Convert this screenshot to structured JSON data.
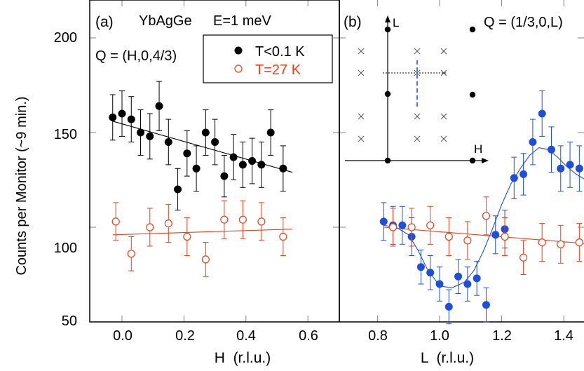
{
  "ylabel": "Counts per Monitor (~9 min.)",
  "colors": {
    "black": "#000000",
    "red": "#e8401c",
    "blue": "#1f4fd8",
    "tickgray": "#808080"
  },
  "chart_data": [
    {
      "panel": "(a)",
      "type": "scatter",
      "sample": "YbAgGe",
      "energy": "E=1 meV",
      "q_label": "Q = (H,0,4/3)",
      "xlabel": "H  (r.l.u.)",
      "ylabel": "Counts per Monitor (~9 min.)",
      "xlim": [
        -0.1,
        0.68
      ],
      "ylim": [
        50,
        220
      ],
      "x_ticks": [
        "0.0",
        "0.2",
        "0.4",
        "0.6"
      ],
      "y_ticks": [
        "50",
        "100",
        "150",
        "200"
      ],
      "legend_position": "top-right",
      "series": [
        {
          "name": "T<0.1 K",
          "marker": "filled-circle",
          "color": "#000000",
          "x": [
            -0.03,
            0.0,
            0.03,
            0.06,
            0.09,
            0.12,
            0.15,
            0.18,
            0.21,
            0.24,
            0.27,
            0.3,
            0.33,
            0.36,
            0.39,
            0.42,
            0.45,
            0.48,
            0.52
          ],
          "y": [
            158,
            160,
            157,
            150,
            148,
            164,
            145,
            120,
            139,
            131,
            150,
            145,
            127,
            137,
            133,
            135,
            133,
            150,
            131
          ],
          "err": [
            12,
            12,
            12,
            12,
            12,
            13,
            12,
            11,
            12,
            12,
            12,
            12,
            11,
            12,
            12,
            12,
            12,
            12,
            12
          ],
          "fit": {
            "x": [
              -0.03,
              0.55
            ],
            "y": [
              156,
              129
            ]
          }
        },
        {
          "name": "T=27 K",
          "marker": "open-circle",
          "color": "#e8401c",
          "x": [
            -0.02,
            0.03,
            0.09,
            0.15,
            0.21,
            0.27,
            0.33,
            0.39,
            0.45,
            0.52
          ],
          "y": [
            103,
            86,
            100,
            102,
            95,
            83,
            104,
            104,
            103,
            95
          ],
          "err": [
            10,
            9,
            10,
            10,
            10,
            9,
            10,
            10,
            10,
            10
          ],
          "fit": {
            "x": [
              -0.03,
              0.55
            ],
            "y": [
              96,
              99
            ]
          }
        }
      ]
    },
    {
      "panel": "(b)",
      "type": "scatter",
      "q_label": "Q = (1/3,0,L)",
      "xlabel": "L  (r.l.u.)",
      "xlim": [
        0.73,
        1.5
      ],
      "ylim": [
        50,
        220
      ],
      "x_ticks": [
        "0.8",
        "1.0",
        "1.2",
        "1.4"
      ],
      "series": [
        {
          "name": "T<0.1 K",
          "marker": "filled-circle",
          "color": "#1f4fd8",
          "x": [
            0.82,
            0.85,
            0.88,
            0.91,
            0.94,
            0.97,
            1.0,
            1.03,
            1.06,
            1.09,
            1.12,
            1.15,
            1.18,
            1.21,
            1.24,
            1.27,
            1.3,
            1.33,
            1.36,
            1.39,
            1.42,
            1.45
          ],
          "y": [
            103,
            101,
            101,
            95,
            79,
            76,
            70,
            58,
            74,
            70,
            73,
            59,
            96,
            99,
            126,
            128,
            145,
            160,
            141,
            131,
            133,
            131
          ],
          "err": [
            10,
            10,
            10,
            10,
            9,
            9,
            9,
            9,
            9,
            9,
            9,
            9,
            10,
            10,
            11,
            11,
            12,
            12,
            12,
            12,
            12,
            12
          ],
          "fit_curve": {
            "x": [
              0.82,
              0.86,
              0.9,
              0.93,
              0.96,
              1.0,
              1.04,
              1.08,
              1.11,
              1.14,
              1.17,
              1.2,
              1.23,
              1.26,
              1.29,
              1.32,
              1.35,
              1.38,
              1.41,
              1.44,
              1.47,
              1.5
            ],
            "y": [
              101,
              100,
              96,
              88,
              78,
              69,
              68,
              71,
              77,
              87,
              99,
              112,
              123,
              131,
              138,
              142,
              141,
              137,
              132,
              128,
              125,
              124
            ]
          }
        },
        {
          "name": "T=27 K",
          "marker": "open-circle",
          "color": "#e8401c",
          "x": [
            0.85,
            0.91,
            0.97,
            1.03,
            1.09,
            1.15,
            1.21,
            1.27,
            1.33,
            1.39,
            1.45
          ],
          "y": [
            100,
            100,
            101,
            95,
            93,
            106,
            95,
            84,
            92,
            91,
            92
          ],
          "err": [
            10,
            10,
            10,
            10,
            10,
            10,
            10,
            9,
            10,
            10,
            10
          ],
          "fit": {
            "x": [
              0.82,
              1.5
            ],
            "y": [
              100,
              91
            ]
          }
        }
      ],
      "inset": {
        "axis_labels": [
          "L",
          "H"
        ],
        "description": "reciprocal lattice sketch: filled dots are nuclear Bragg points, crosses are other positions, dashed blue line marks the scan"
      }
    }
  ]
}
